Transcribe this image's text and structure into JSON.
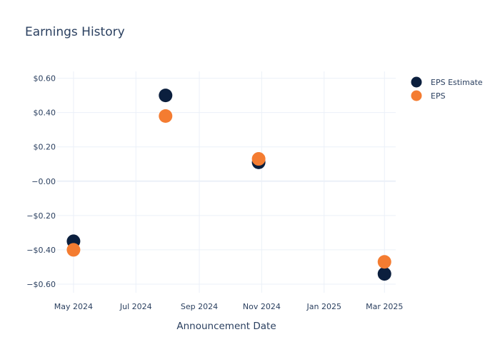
{
  "chart_data": {
    "type": "scatter",
    "title": "Earnings History",
    "xlabel": "Announcement Date",
    "ylabel": "",
    "x_tick_labels": [
      "May 2024",
      "Jul 2024",
      "Sep 2024",
      "Nov 2024",
      "Jan 2025",
      "Mar 2025"
    ],
    "x_tick_dates": [
      "2024-05-01",
      "2024-07-01",
      "2024-09-01",
      "2024-11-01",
      "2025-01-01",
      "2025-03-01"
    ],
    "x_range": [
      "2024-04-15",
      "2025-03-12"
    ],
    "y_tick_labels": [
      "$0.60",
      "$0.40",
      "$0.20",
      "−0.00",
      "−$0.20",
      "−$0.40",
      "−$0.60"
    ],
    "y_tick_values": [
      0.6,
      0.4,
      0.2,
      0.0,
      -0.2,
      -0.4,
      -0.6
    ],
    "ylim": [
      -0.65,
      0.64
    ],
    "grid": true,
    "legend_position": "top-right",
    "series": [
      {
        "name": "EPS Estimate",
        "color": "#0b1f3e",
        "points": [
          {
            "x": "2024-05-01",
            "y": -0.35
          },
          {
            "x": "2024-07-30",
            "y": 0.5
          },
          {
            "x": "2024-10-29",
            "y": 0.11
          },
          {
            "x": "2025-03-01",
            "y": -0.54
          }
        ]
      },
      {
        "name": "EPS",
        "color": "#f47c31",
        "points": [
          {
            "x": "2024-05-01",
            "y": -0.4
          },
          {
            "x": "2024-07-30",
            "y": 0.38
          },
          {
            "x": "2024-10-29",
            "y": 0.13
          },
          {
            "x": "2025-03-01",
            "y": -0.47
          }
        ]
      }
    ]
  }
}
